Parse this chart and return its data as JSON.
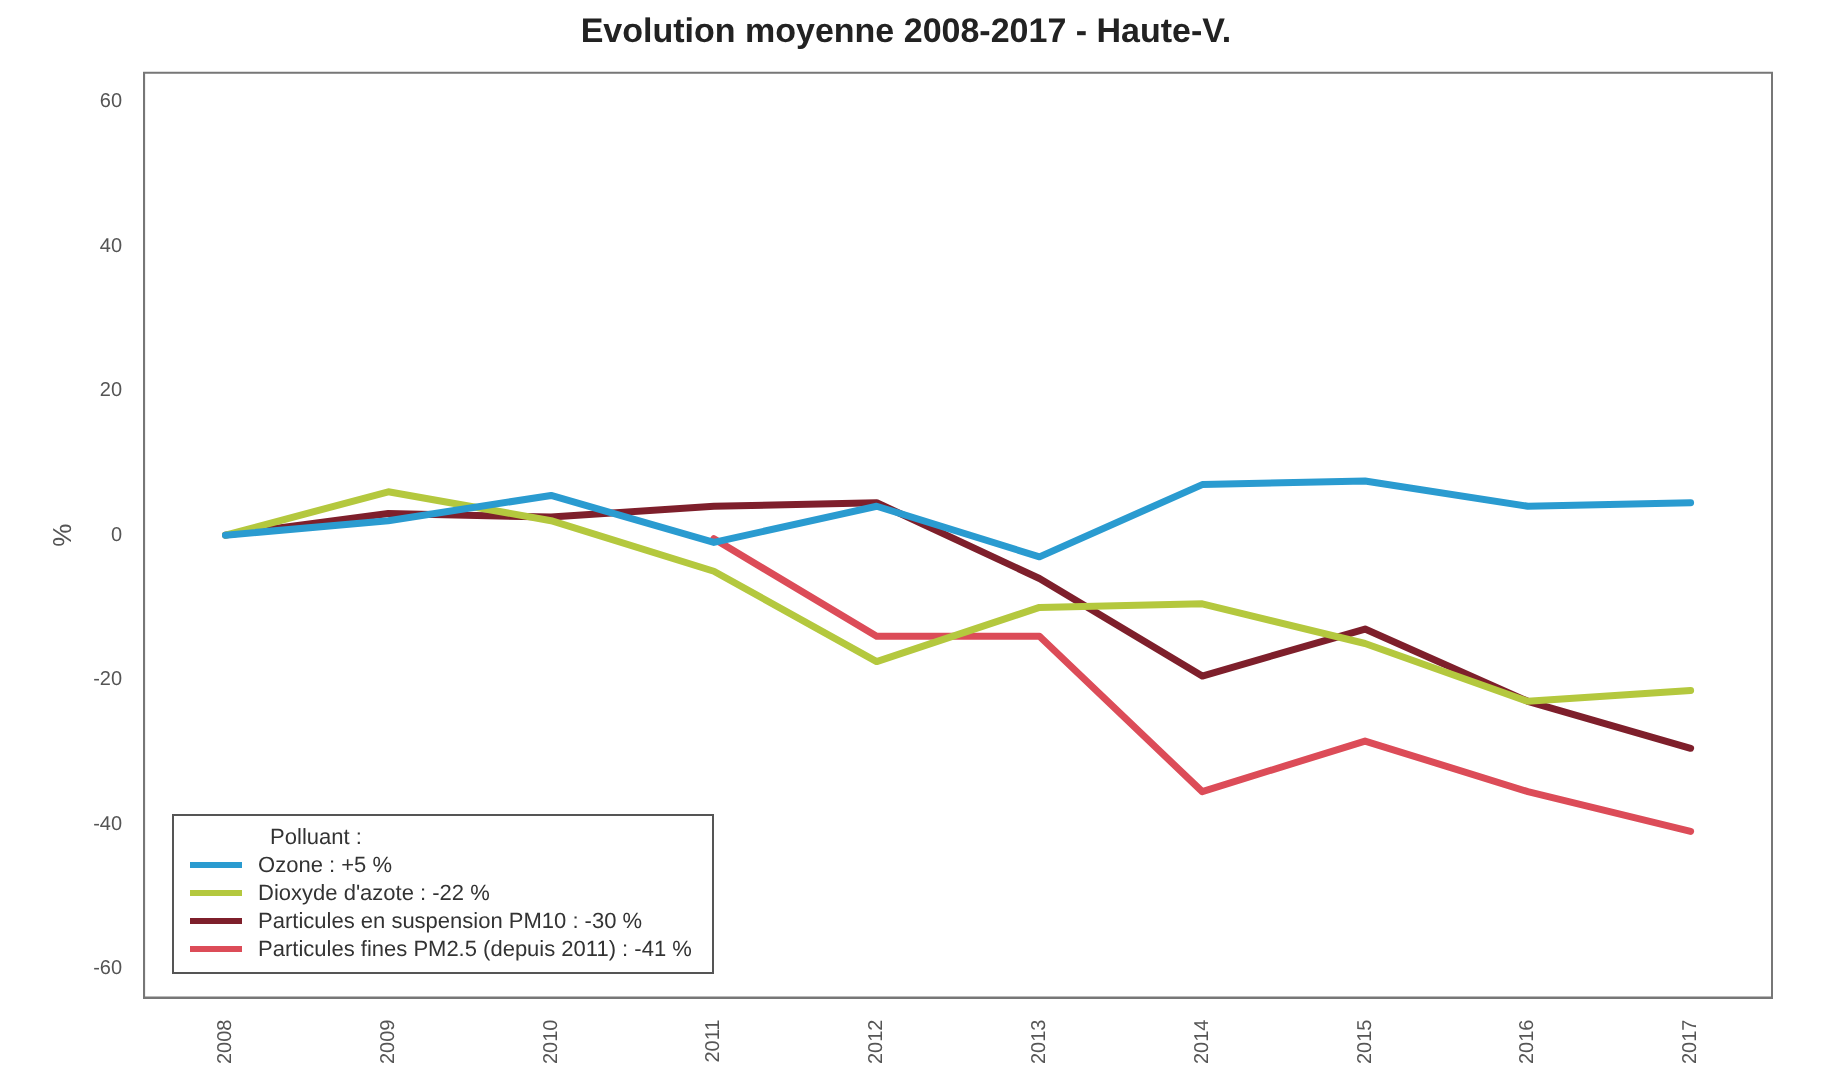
{
  "chart_data": {
    "type": "line",
    "title": "Evolution moyenne 2008-2017 - Haute-V.",
    "ylabel": "%",
    "legend_title": "Polluant :",
    "legend": "bottom left",
    "grid": false,
    "marker": "none",
    "line_style": "solid",
    "categories": [
      "2008",
      "2009",
      "2010",
      "2011",
      "2012",
      "2013",
      "2014",
      "2015",
      "2016",
      "2017"
    ],
    "ylim": [
      -64,
      64
    ],
    "yticks": [
      -60,
      -40,
      -20,
      0,
      20,
      40,
      60
    ],
    "series": [
      {
        "name": "Ozone : +5 %",
        "color": "#2a9bd0",
        "values": [
          0,
          2,
          5.5,
          -1,
          4,
          -3,
          7,
          7.5,
          4,
          4.5
        ]
      },
      {
        "name": "Dioxyde d'azote : -22 %",
        "color": "#b4c83e",
        "values": [
          0,
          6,
          2,
          -5,
          -17.5,
          -10,
          -9.5,
          -15,
          -23,
          -21.5
        ]
      },
      {
        "name": "Particules en suspension PM10 : -30 %",
        "color": "#7e1f2b",
        "values": [
          0,
          3,
          2.5,
          4,
          4.5,
          -6,
          -19.5,
          -13,
          -23,
          -29.5
        ]
      },
      {
        "name": "Particules fines PM2.5 (depuis 2011) : -41 %",
        "color": "#dc4c58",
        "values": [
          null,
          null,
          null,
          -0.5,
          -14,
          -14,
          -35.5,
          -28.5,
          -35.5,
          -41
        ]
      }
    ]
  }
}
